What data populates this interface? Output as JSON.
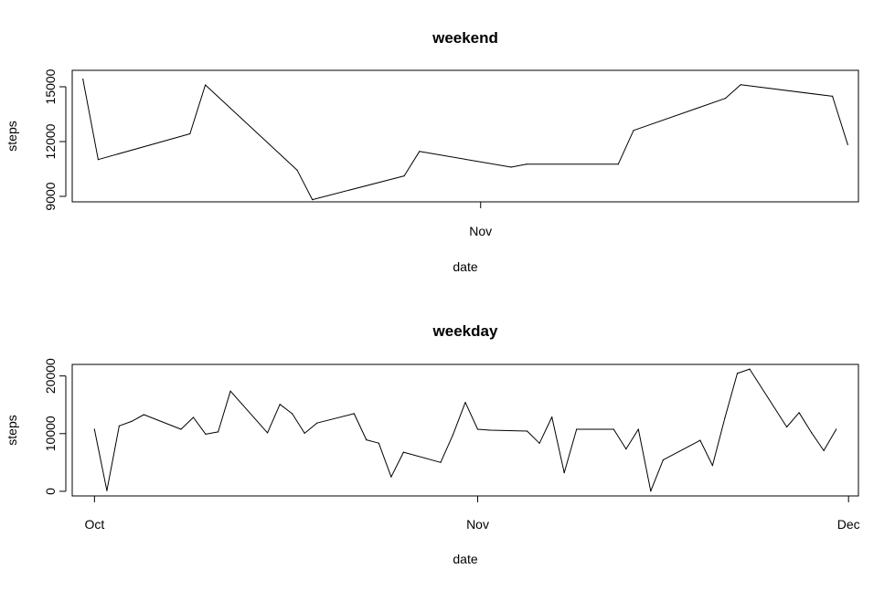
{
  "chart_data": [
    {
      "type": "line",
      "title": "weekend",
      "xlabel": "date",
      "ylabel": "steps",
      "x_ticks": [
        "Nov"
      ],
      "y_ticks": [
        "9000",
        "12000",
        "15000"
      ],
      "ylim": [
        8700,
        15900
      ],
      "grid": false,
      "legend": "none",
      "line_color": "#000000",
      "series": [
        {
          "x": [
            "2012-10-06",
            "2012-10-07",
            "2012-10-13",
            "2012-10-14",
            "2012-10-20",
            "2012-10-21",
            "2012-10-27",
            "2012-10-28",
            "2012-11-03",
            "2012-11-04",
            "2012-11-10",
            "2012-11-11",
            "2012-11-17",
            "2012-11-18",
            "2012-11-24",
            "2012-11-25"
          ],
          "values": [
            15420,
            11015,
            12426,
            15098,
            10439,
            8821,
            10119,
            11458,
            10600,
            10765,
            10765,
            12608,
            14366,
            15110,
            14478,
            11834
          ]
        }
      ]
    },
    {
      "type": "line",
      "title": "weekday",
      "xlabel": "date",
      "ylabel": "steps",
      "x_ticks": [
        "Oct",
        "Nov",
        "Dec"
      ],
      "y_ticks": [
        "0",
        "10000",
        "20000"
      ],
      "ylim": [
        -800,
        22000
      ],
      "grid": false,
      "legend": "none",
      "line_color": "#000000",
      "series": [
        {
          "x": [
            "2012-10-01",
            "2012-10-02",
            "2012-10-03",
            "2012-10-04",
            "2012-10-05",
            "2012-10-08",
            "2012-10-09",
            "2012-10-10",
            "2012-10-11",
            "2012-10-12",
            "2012-10-15",
            "2012-10-16",
            "2012-10-17",
            "2012-10-18",
            "2012-10-19",
            "2012-10-22",
            "2012-10-23",
            "2012-10-24",
            "2012-10-25",
            "2012-10-26",
            "2012-10-29",
            "2012-10-30",
            "2012-10-31",
            "2012-11-01",
            "2012-11-02",
            "2012-11-05",
            "2012-11-06",
            "2012-11-07",
            "2012-11-08",
            "2012-11-09",
            "2012-11-12",
            "2012-11-13",
            "2012-11-14",
            "2012-11-15",
            "2012-11-16",
            "2012-11-19",
            "2012-11-20",
            "2012-11-21",
            "2012-11-22",
            "2012-11-23",
            "2012-11-26",
            "2012-11-27",
            "2012-11-28",
            "2012-11-29",
            "2012-11-30"
          ],
          "values": [
            10766,
            126,
            11352,
            12116,
            13294,
            10766,
            12811,
            9900,
            10304,
            17382,
            10139,
            15084,
            13452,
            10056,
            11829,
            13460,
            8918,
            8355,
            2492,
            6778,
            5018,
            9819,
            15414,
            10766,
            10600,
            10439,
            8334,
            12883,
            3219,
            10766,
            10765,
            7336,
            10766,
            41,
            5441,
            8841,
            4472,
            12787,
            20427,
            21194,
            11162,
            13646,
            10183,
            7047,
            10766
          ]
        }
      ]
    }
  ]
}
